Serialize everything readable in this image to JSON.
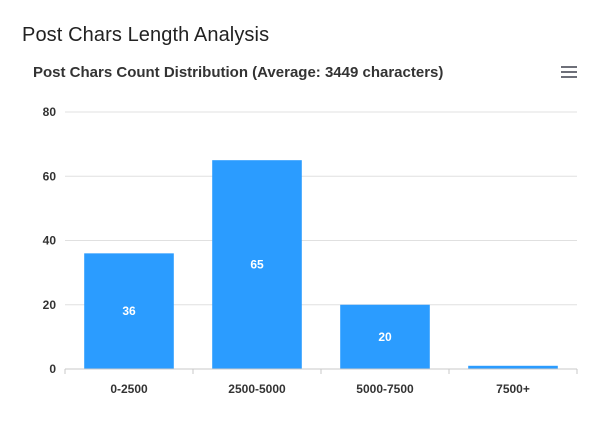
{
  "page": {
    "section_title": "Post Chars Length Analysis"
  },
  "menu": {
    "icon": "hamburger-menu-icon"
  },
  "chart_data": {
    "type": "bar",
    "title": "Post Chars Count Distribution (Average: 3449 characters)",
    "categories": [
      "0-2500",
      "2500-5000",
      "5000-7500",
      "7500+"
    ],
    "values": [
      36,
      65,
      20,
      1
    ],
    "data_labels": [
      "36",
      "65",
      "20",
      ""
    ],
    "ylim": [
      0,
      80
    ],
    "yticks": [
      0,
      20,
      40,
      60,
      80
    ],
    "grid": true,
    "bar_color": "#2b9cff",
    "xlabel": "",
    "ylabel": ""
  }
}
